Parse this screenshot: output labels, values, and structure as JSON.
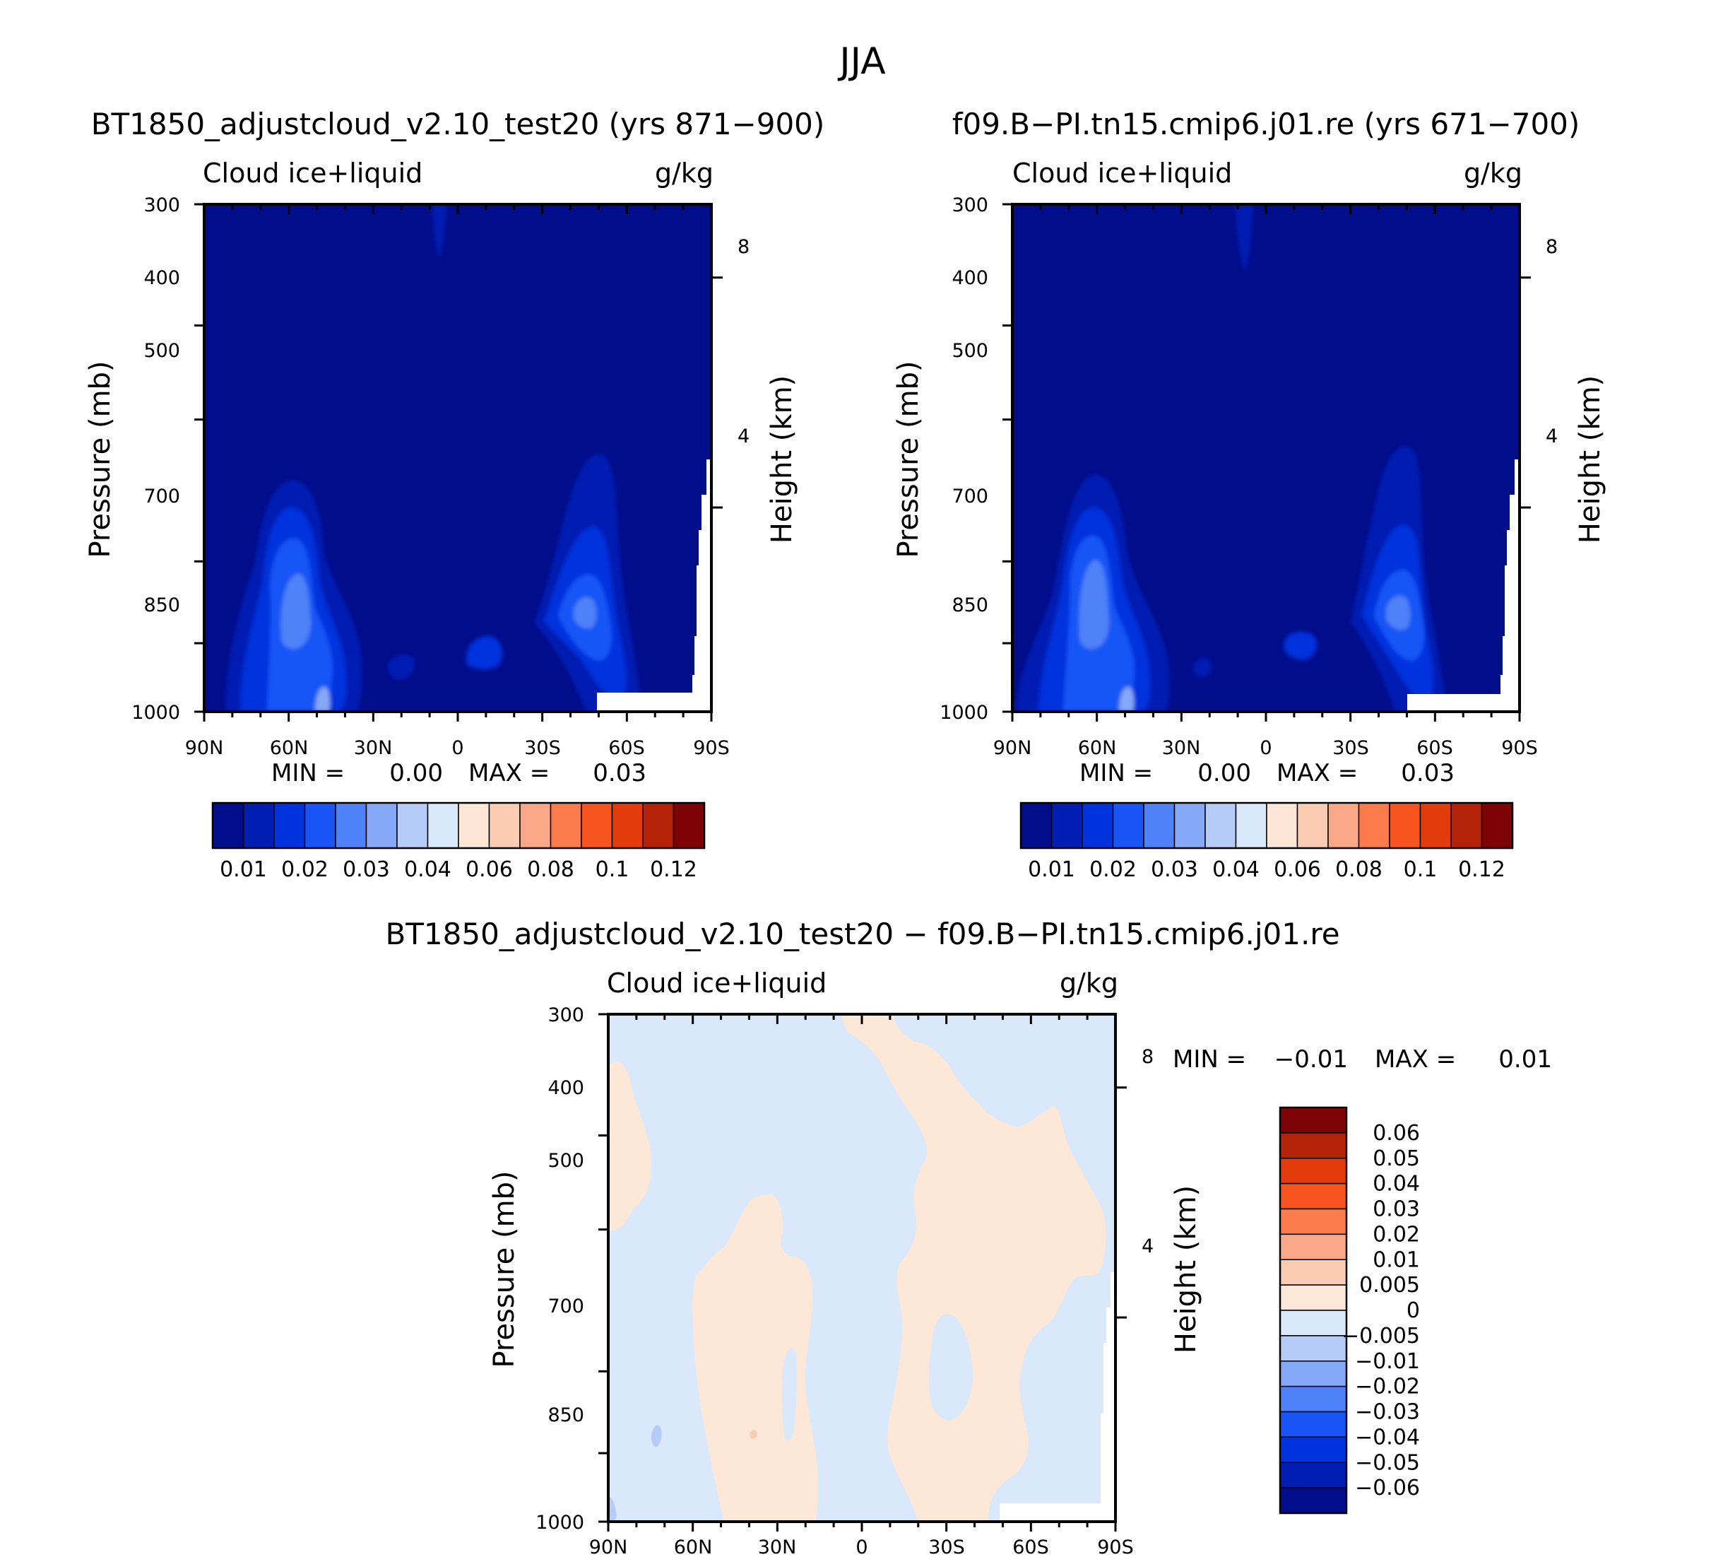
{
  "title": "JJA",
  "colors": {
    "seq": [
      "#000e8c",
      "#001fb2",
      "#0033dd",
      "#1955f6",
      "#4f82f8",
      "#85a8f7",
      "#b5cbf8",
      "#d9e8fb",
      "#fde6d6",
      "#fbcbb2",
      "#fba888",
      "#fb7b4c",
      "#f85420",
      "#e33b0b",
      "#b42307",
      "#7e0305"
    ],
    "diff": [
      "#000e8c",
      "#001fb2",
      "#0033dd",
      "#1955f6",
      "#4f82f8",
      "#85a8f7",
      "#b5cbf8",
      "#d9e8fb",
      "#fde8d8",
      "#fbcbb2",
      "#fba888",
      "#fb7b4c",
      "#f85420",
      "#e33b0b",
      "#b42307",
      "#7e0305"
    ]
  },
  "chart_data": [
    {
      "type": "heatmap",
      "title": "BT1850_adjustcloud_v2.10_test20 (yrs 871−900)",
      "left_label": "Cloud ice+liquid",
      "right_label": "g/kg",
      "ylabel": "Pressure (mb)",
      "ylabel_right": "Height (km)",
      "x_ticks": [
        "90N",
        "60N",
        "30N",
        "0",
        "30S",
        "60S",
        "90S"
      ],
      "y_ticks": [
        "300",
        "400",
        "500",
        "700",
        "850",
        "1000"
      ],
      "y_ticks_right": [
        "8",
        "4"
      ],
      "xlim": [
        90,
        -90
      ],
      "ylim": [
        1000,
        300
      ],
      "stats": {
        "min_label": "MIN =",
        "min": "0.00",
        "max_label": "MAX =",
        "max": "0.03"
      },
      "colorbar_labels": [
        "0.01",
        "0.02",
        "0.03",
        "0.04",
        "0.06",
        "0.08",
        "0.1",
        "0.12"
      ]
    },
    {
      "type": "heatmap",
      "title": "f09.B−PI.tn15.cmip6.j01.re (yrs 671−700)",
      "left_label": "Cloud ice+liquid",
      "right_label": "g/kg",
      "ylabel": "Pressure (mb)",
      "ylabel_right": "Height (km)",
      "x_ticks": [
        "90N",
        "60N",
        "30N",
        "0",
        "30S",
        "60S",
        "90S"
      ],
      "y_ticks": [
        "300",
        "400",
        "500",
        "700",
        "850",
        "1000"
      ],
      "y_ticks_right": [
        "8",
        "4"
      ],
      "xlim": [
        90,
        -90
      ],
      "ylim": [
        1000,
        300
      ],
      "stats": {
        "min_label": "MIN =",
        "min": "0.00",
        "max_label": "MAX =",
        "max": "0.03"
      },
      "colorbar_labels": [
        "0.01",
        "0.02",
        "0.03",
        "0.04",
        "0.06",
        "0.08",
        "0.1",
        "0.12"
      ]
    },
    {
      "type": "heatmap",
      "title": "BT1850_adjustcloud_v2.10_test20 − f09.B−PI.tn15.cmip6.j01.re",
      "left_label": "Cloud ice+liquid",
      "right_label": "g/kg",
      "ylabel": "Pressure (mb)",
      "ylabel_right": "Height (km)",
      "x_ticks": [
        "90N",
        "60N",
        "30N",
        "0",
        "30S",
        "60S",
        "90S"
      ],
      "y_ticks": [
        "300",
        "400",
        "500",
        "700",
        "850",
        "1000"
      ],
      "y_ticks_right": [
        "8",
        "4"
      ],
      "xlim": [
        90,
        -90
      ],
      "ylim": [
        1000,
        300
      ],
      "stats": {
        "min_label": "MIN =",
        "min": "−0.01",
        "max_label": "MAX =",
        "max": "0.01"
      },
      "colorbar_labels": [
        "0.06",
        "0.05",
        "0.04",
        "0.03",
        "0.02",
        "0.01",
        "0.005",
        "0",
        "−0.005",
        "−0.01",
        "−0.02",
        "−0.03",
        "−0.04",
        "−0.05",
        "−0.06"
      ]
    }
  ]
}
